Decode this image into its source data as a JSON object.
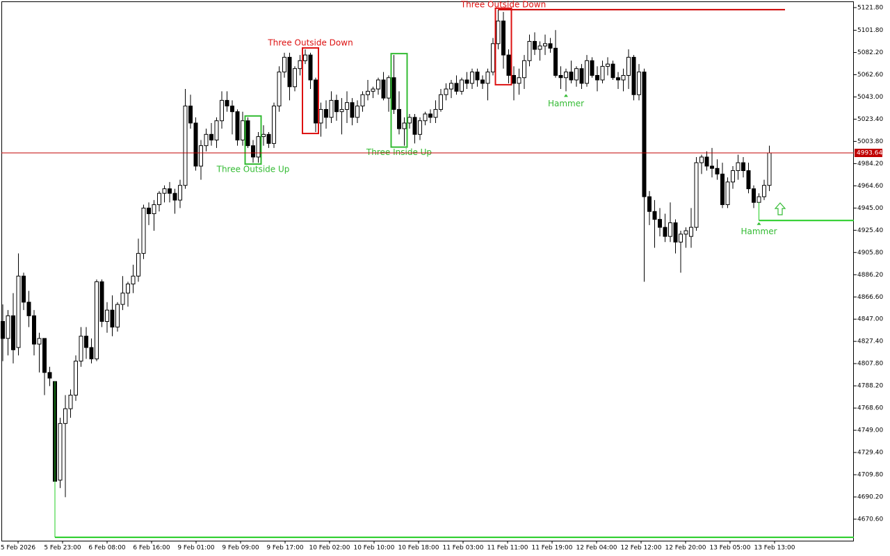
{
  "chart_data": {
    "type": "candlestick",
    "ylim": [
      4651.6,
      5128.5
    ],
    "yticks": [
      {
        "value": 5121.8,
        "label": "5121.80"
      },
      {
        "value": 5101.8,
        "label": "5101.80"
      },
      {
        "value": 5082.2,
        "label": "5082.20"
      },
      {
        "value": 5062.6,
        "label": "5062.60"
      },
      {
        "value": 5043,
        "label": "5043.00"
      },
      {
        "value": 5023.4,
        "label": "5023.40"
      },
      {
        "value": 5003.8,
        "label": "5003.80"
      },
      {
        "value": 4984.2,
        "label": "4984.20"
      },
      {
        "value": 4964.6,
        "label": "4964.60"
      },
      {
        "value": 4945,
        "label": "4945.00"
      },
      {
        "value": 4925.4,
        "label": "4925.40"
      },
      {
        "value": 4905.8,
        "label": "4905.80"
      },
      {
        "value": 4886.2,
        "label": "4886.20"
      },
      {
        "value": 4866.6,
        "label": "4866.60"
      },
      {
        "value": 4847,
        "label": "4847.00"
      },
      {
        "value": 4827.4,
        "label": "4827.40"
      },
      {
        "value": 4807.8,
        "label": "4807.80"
      },
      {
        "value": 4788.2,
        "label": "4788.20"
      },
      {
        "value": 4768.6,
        "label": "4768.60"
      },
      {
        "value": 4749,
        "label": "4749.00"
      },
      {
        "value": 4729.4,
        "label": "4729.40"
      },
      {
        "value": 4709.8,
        "label": "4709.80"
      },
      {
        "value": 4690.2,
        "label": "4690.20"
      },
      {
        "value": 4670.6,
        "label": "4670.60"
      }
    ],
    "x_labels": [
      "5 Feb 2026",
      "5 Feb 23:00",
      "6 Feb 08:00",
      "6 Feb 16:00",
      "9 Feb 01:00",
      "9 Feb 09:00",
      "9 Feb 17:00",
      "10 Feb 02:00",
      "10 Feb 10:00",
      "10 Feb 18:00",
      "11 Feb 03:00",
      "11 Feb 11:00",
      "11 Feb 19:00",
      "12 Feb 04:00",
      "12 Feb 12:00",
      "12 Feb 20:00",
      "13 Feb 05:00",
      "13 Feb 13:00"
    ],
    "current_price": 4993.64,
    "current_color": "#c00000",
    "up_color": "#ffffff",
    "down_color": "#000000",
    "ohlc": [
      [
        4845,
        4860,
        4810,
        4830
      ],
      [
        4830,
        4855,
        4815,
        4850
      ],
      [
        4850,
        4870,
        4808,
        4820
      ],
      [
        4822,
        4905,
        4815,
        4885
      ],
      [
        4885,
        4888,
        4855,
        4862
      ],
      [
        4862,
        4872,
        4840,
        4850
      ],
      [
        4850,
        4855,
        4815,
        4825
      ],
      [
        4825,
        4835,
        4800,
        4830
      ],
      [
        4830,
        4830,
        4780,
        4800
      ],
      [
        4800,
        4805,
        4788,
        4795
      ],
      [
        4792,
        4792,
        4700,
        4704
      ],
      [
        4705,
        4760,
        4698,
        4755
      ],
      [
        4755,
        4780,
        4690,
        4768
      ],
      [
        4768,
        4785,
        4760,
        4780
      ],
      [
        4780,
        4815,
        4775,
        4810
      ],
      [
        4810,
        4840,
        4805,
        4832
      ],
      [
        4832,
        4840,
        4812,
        4822
      ],
      [
        4822,
        4830,
        4808,
        4812
      ],
      [
        4812,
        4882,
        4810,
        4880
      ],
      [
        4880,
        4882,
        4840,
        4845
      ],
      [
        4845,
        4862,
        4835,
        4855
      ],
      [
        4855,
        4868,
        4832,
        4840
      ],
      [
        4840,
        4862,
        4836,
        4860
      ],
      [
        4860,
        4885,
        4855,
        4870
      ],
      [
        4870,
        4880,
        4858,
        4878
      ],
      [
        4878,
        4895,
        4870,
        4885
      ],
      [
        4885,
        4918,
        4880,
        4905
      ],
      [
        4905,
        4948,
        4900,
        4945
      ],
      [
        4945,
        4950,
        4930,
        4940
      ],
      [
        4940,
        4952,
        4925,
        4948
      ],
      [
        4948,
        4960,
        4942,
        4958
      ],
      [
        4958,
        4965,
        4950,
        4962
      ],
      [
        4962,
        4968,
        4950,
        4958
      ],
      [
        4958,
        4962,
        4940,
        4952
      ],
      [
        4952,
        4970,
        4945,
        4965
      ],
      [
        4965,
        5050,
        4962,
        5035
      ],
      [
        5035,
        5045,
        5015,
        5020
      ],
      [
        5020,
        5025,
        4978,
        4982
      ],
      [
        4982,
        5005,
        4970,
        5000
      ],
      [
        5000,
        5015,
        4995,
        5010
      ],
      [
        5010,
        5020,
        5000,
        5005
      ],
      [
        5005,
        5025,
        4998,
        5022
      ],
      [
        5022,
        5048,
        5015,
        5040
      ],
      [
        5040,
        5048,
        5030,
        5035
      ],
      [
        5035,
        5040,
        5010,
        5030
      ],
      [
        5030,
        5032,
        5000,
        5005
      ],
      [
        5005,
        5030,
        5000,
        5022
      ],
      [
        5022,
        5025,
        4998,
        5000
      ],
      [
        5000,
        5005,
        4985,
        4990
      ],
      [
        4990,
        5012,
        4985,
        5008
      ],
      [
        5008,
        5018,
        5000,
        5010
      ],
      [
        5010,
        5012,
        4998,
        5002
      ],
      [
        5002,
        5038,
        4998,
        5035
      ],
      [
        5035,
        5070,
        5030,
        5065
      ],
      [
        5065,
        5082,
        5060,
        5078
      ],
      [
        5078,
        5082,
        5040,
        5052
      ],
      [
        5052,
        5070,
        5048,
        5068
      ],
      [
        5068,
        5080,
        5062,
        5075
      ],
      [
        5075,
        5085,
        5072,
        5080
      ],
      [
        5080,
        5082,
        5050,
        5058
      ],
      [
        5058,
        5060,
        5012,
        5020
      ],
      [
        5020,
        5038,
        5008,
        5032
      ],
      [
        5032,
        5040,
        5015,
        5025
      ],
      [
        5025,
        5048,
        5020,
        5040
      ],
      [
        5040,
        5045,
        5022,
        5030
      ],
      [
        5030,
        5042,
        5010,
        5032
      ],
      [
        5032,
        5048,
        5020,
        5038
      ],
      [
        5038,
        5042,
        5018,
        5025
      ],
      [
        5025,
        5040,
        5020,
        5035
      ],
      [
        5035,
        5048,
        5030,
        5045
      ],
      [
        5045,
        5058,
        5040,
        5048
      ],
      [
        5048,
        5052,
        5042,
        5050
      ],
      [
        5050,
        5060,
        5045,
        5058
      ],
      [
        5058,
        5065,
        5040,
        5042
      ],
      [
        5042,
        5062,
        5030,
        5060
      ],
      [
        5060,
        5080,
        5028,
        5032
      ],
      [
        5032,
        5048,
        5010,
        5015
      ],
      [
        5015,
        5025,
        5000,
        5020
      ],
      [
        5020,
        5028,
        5015,
        5025
      ],
      [
        5025,
        5028,
        5002,
        5010
      ],
      [
        5010,
        5025,
        5005,
        5022
      ],
      [
        5022,
        5030,
        5018,
        5028
      ],
      [
        5028,
        5032,
        5020,
        5025
      ],
      [
        5025,
        5040,
        5020,
        5032
      ],
      [
        5032,
        5050,
        5030,
        5045
      ],
      [
        5045,
        5055,
        5040,
        5050
      ],
      [
        5050,
        5058,
        5042,
        5055
      ],
      [
        5055,
        5062,
        5045,
        5048
      ],
      [
        5048,
        5060,
        5045,
        5058
      ],
      [
        5058,
        5065,
        5050,
        5055
      ],
      [
        5055,
        5068,
        5050,
        5065
      ],
      [
        5065,
        5068,
        5052,
        5058
      ],
      [
        5058,
        5062,
        5050,
        5055
      ],
      [
        5055,
        5068,
        5040,
        5065
      ],
      [
        5065,
        5095,
        5062,
        5090
      ],
      [
        5090,
        5120,
        5085,
        5110
      ],
      [
        5110,
        5118,
        5068,
        5080
      ],
      [
        5080,
        5085,
        5055,
        5062
      ],
      [
        5062,
        5070,
        5040,
        5055
      ],
      [
        5055,
        5068,
        5045,
        5060
      ],
      [
        5060,
        5080,
        5050,
        5075
      ],
      [
        5075,
        5098,
        5070,
        5092
      ],
      [
        5092,
        5100,
        5080,
        5085
      ],
      [
        5085,
        5092,
        5075,
        5088
      ],
      [
        5088,
        5098,
        5080,
        5090
      ],
      [
        5090,
        5095,
        5082,
        5086
      ],
      [
        5086,
        5102,
        5060,
        5062
      ],
      [
        5062,
        5070,
        5050,
        5060
      ],
      [
        5060,
        5068,
        5048,
        5065
      ],
      [
        5065,
        5075,
        5055,
        5058
      ],
      [
        5058,
        5070,
        5052,
        5068
      ],
      [
        5068,
        5072,
        5050,
        5055
      ],
      [
        5055,
        5080,
        5052,
        5075
      ],
      [
        5075,
        5078,
        5060,
        5062
      ],
      [
        5062,
        5070,
        5048,
        5058
      ],
      [
        5058,
        5075,
        5055,
        5070
      ],
      [
        5070,
        5078,
        5062,
        5072
      ],
      [
        5072,
        5075,
        5058,
        5060
      ],
      [
        5060,
        5065,
        5050,
        5058
      ],
      [
        5058,
        5068,
        5048,
        5062
      ],
      [
        5062,
        5085,
        5050,
        5078
      ],
      [
        5078,
        5080,
        5040,
        5045
      ],
      [
        5045,
        5072,
        5040,
        5065
      ],
      [
        5065,
        5068,
        4880,
        4955
      ],
      [
        4955,
        4960,
        4930,
        4942
      ],
      [
        4942,
        4952,
        4910,
        4935
      ],
      [
        4935,
        4945,
        4920,
        4928
      ],
      [
        4928,
        4940,
        4915,
        4920
      ],
      [
        4920,
        4950,
        4915,
        4932
      ],
      [
        4932,
        4935,
        4905,
        4915
      ],
      [
        4915,
        4925,
        4888,
        4922
      ],
      [
        4922,
        4928,
        4910,
        4925
      ],
      [
        4920,
        4945,
        4910,
        4928
      ],
      [
        4928,
        4990,
        4925,
        4985
      ],
      [
        4985,
        4992,
        4975,
        4990
      ],
      [
        4990,
        4995,
        4978,
        4982
      ],
      [
        4982,
        4998,
        4972,
        4980
      ],
      [
        4980,
        4988,
        4970,
        4975
      ],
      [
        4975,
        4985,
        4945,
        4948
      ],
      [
        4948,
        4972,
        4945,
        4968
      ],
      [
        4968,
        4982,
        4962,
        4978
      ],
      [
        4978,
        4992,
        4970,
        4985
      ],
      [
        4985,
        4990,
        4972,
        4978
      ],
      [
        4978,
        4985,
        4958,
        4962
      ],
      [
        4962,
        4965,
        4945,
        4950
      ],
      [
        4950,
        4958,
        4935,
        4955
      ],
      [
        4955,
        4970,
        4952,
        4965
      ],
      [
        4965,
        5000,
        4960,
        4993.64
      ]
    ],
    "patterns": [
      {
        "name": "Three Outside Up",
        "color": "#33bb33",
        "from": 47,
        "to": 49,
        "bullish": true
      },
      {
        "name": "Three Outside Down",
        "color": "#dd1111",
        "from": 58,
        "to": 60,
        "bullish": false
      },
      {
        "name": "Three Inside Up",
        "color": "#33bb33",
        "from": 75,
        "to": 77,
        "bullish": true
      },
      {
        "name": "Three Outside Down",
        "color": "#dd1111",
        "from": 95,
        "to": 97,
        "bullish": false
      },
      {
        "name": "Hammer",
        "color": "#33bb33",
        "from": 108,
        "to": 108,
        "bullish": true,
        "arrow": true
      },
      {
        "name": "Hammer",
        "color": "#33bb33",
        "from": 145,
        "to": 145,
        "bullish": true,
        "arrow": true
      }
    ],
    "levels": [
      {
        "price": 5120.0,
        "color": "#cc0000",
        "from": 95,
        "to": 150
      },
      {
        "price": 4934.0,
        "color": "#22cc22",
        "from": 145
      },
      {
        "price": 4654.6,
        "color": "#22cc22",
        "from": 10
      }
    ]
  }
}
